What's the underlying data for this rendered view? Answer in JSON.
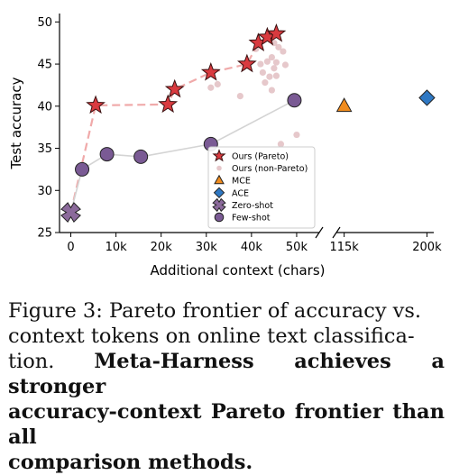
{
  "chart_data": {
    "type": "scatter",
    "xlabel": "Additional context (chars)",
    "ylabel": "Test accuracy",
    "ylim": [
      25,
      51
    ],
    "axis_break": true,
    "segments": [
      {
        "xlim": [
          -2500,
          55000
        ],
        "ticks": [
          0,
          10000,
          20000,
          30000,
          40000,
          50000
        ],
        "tick_labels": [
          "0",
          "10k",
          "20k",
          "30k",
          "40k",
          "50k"
        ]
      },
      {
        "xlim": [
          107000,
          207000
        ],
        "ticks": [
          115000,
          200000
        ],
        "tick_labels": [
          "115k",
          "200k"
        ]
      }
    ],
    "yticks": [
      25,
      30,
      35,
      40,
      45,
      50
    ],
    "ytick_labels": [
      "25",
      "30",
      "35",
      "40",
      "45",
      "50"
    ],
    "legend_position": "center",
    "series": [
      {
        "name": "Ours (Pareto)",
        "marker": "star",
        "color": "#d93a3f",
        "line": "dashed",
        "line_color": "#f0aaaa",
        "x": [
          5500,
          21500,
          23000,
          31000,
          39000,
          41500,
          43500,
          45500
        ],
        "y": [
          40.1,
          40.2,
          42.0,
          44.0,
          45.0,
          47.5,
          48.2,
          48.6
        ]
      },
      {
        "name": "Ours (non-Pareto)",
        "marker": "dot",
        "color": "#c7848b",
        "x": [
          31000,
          32500,
          37500,
          41000,
          42000,
          42500,
          43500,
          44500,
          45000,
          45500,
          46000,
          47000,
          44000,
          45500,
          43000,
          47500,
          45000,
          50000,
          46500,
          44500
        ],
        "y": [
          42.2,
          42.6,
          41.2,
          46.8,
          45.0,
          44.0,
          45.3,
          45.8,
          44.5,
          45.2,
          47.0,
          46.5,
          43.5,
          43.6,
          42.8,
          44.9,
          47.5,
          36.6,
          35.5,
          41.9
        ]
      },
      {
        "name": "MCE",
        "marker": "triangle",
        "color": "#f08c1e",
        "x": [
          115000
        ],
        "y": [
          40.0
        ]
      },
      {
        "name": "ACE",
        "marker": "diamond",
        "color": "#2f78c3",
        "x": [
          200000
        ],
        "y": [
          41.0
        ]
      },
      {
        "name": "Zero-shot",
        "marker": "x",
        "color": "#8b6a9b",
        "x": [
          0
        ],
        "y": [
          27.4
        ]
      },
      {
        "name": "Few-shot",
        "marker": "circle",
        "color": "#7a5a94",
        "line": "solid",
        "line_color": "#d4d4d4",
        "x": [
          2500,
          8000,
          15500,
          31000,
          49500
        ],
        "y": [
          32.5,
          34.3,
          34.0,
          35.5,
          40.7
        ]
      }
    ],
    "colors": {
      "pareto_line": "#f0aaaa",
      "fewshot_line": "#d4d4d4",
      "star_edge": "#3a1010",
      "axis": "#000000"
    }
  },
  "caption": {
    "normal_lines": [
      "Figure 3: Pareto frontier of accuracy vs.",
      "context tokens on online text classifica-",
      "tion. "
    ],
    "bold_inline": "Meta-Harness achieves a stronger",
    "bold_lines": [
      "accuracy-context Pareto frontier than all",
      "comparison methods."
    ]
  }
}
